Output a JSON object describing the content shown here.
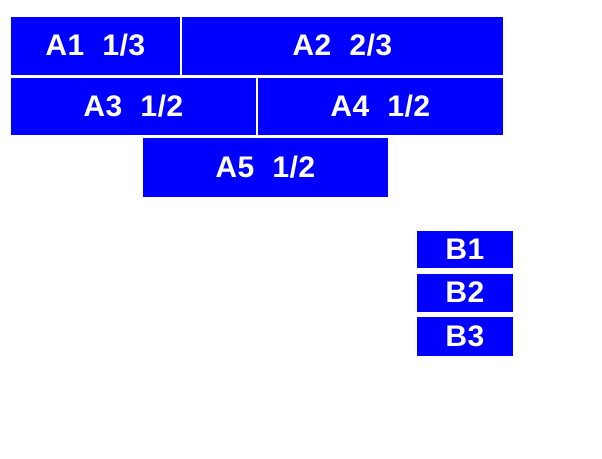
{
  "canvas": {
    "background_color": "#ffffff",
    "block_color": "#0000ff",
    "label_color": "#ffffff"
  },
  "blocks": {
    "group_a": [
      {
        "id": "a1",
        "label": "A1  1/3"
      },
      {
        "id": "a2",
        "label": "A2  2/3"
      },
      {
        "id": "a3",
        "label": "A3  1/2"
      },
      {
        "id": "a4",
        "label": "A4  1/2"
      },
      {
        "id": "a5",
        "label": "A5  1/2"
      }
    ],
    "group_b": [
      {
        "id": "b1",
        "label": "B1"
      },
      {
        "id": "b2",
        "label": "B2"
      },
      {
        "id": "b3",
        "label": "B3"
      }
    ]
  }
}
